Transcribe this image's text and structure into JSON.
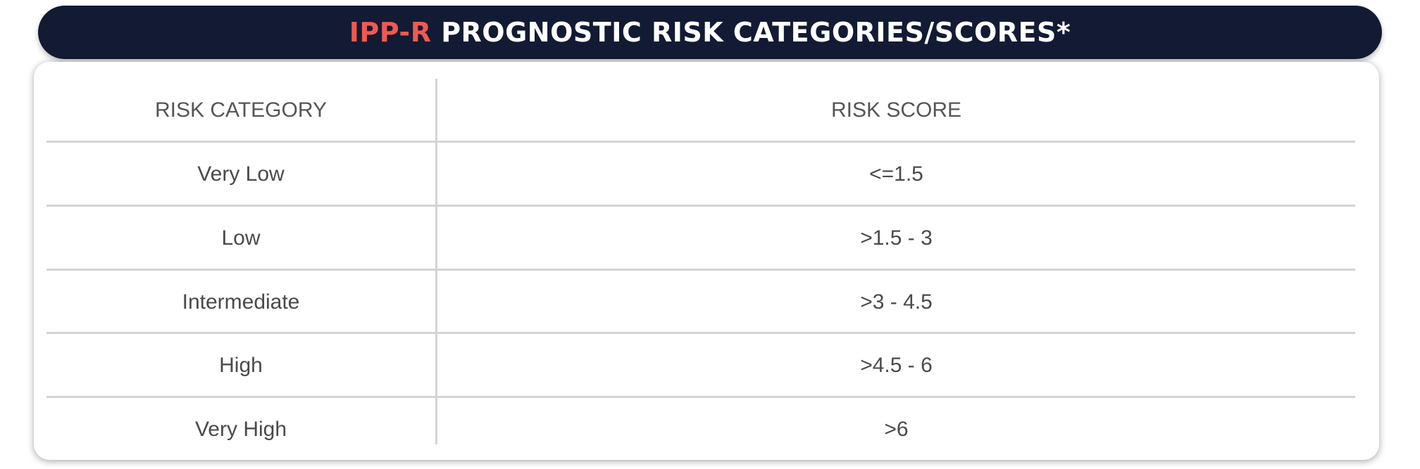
{
  "header": {
    "title_accent": "IPP-R",
    "title_rest": " PROGNOSTIC RISK CATEGORIES/SCORES*",
    "background_color": "#131a33",
    "accent_color": "#ee5a52"
  },
  "table": {
    "columns": [
      "RISK CATEGORY",
      "RISK SCORE"
    ],
    "rows": [
      {
        "category": "Very Low",
        "score": "<=1.5"
      },
      {
        "category": "Low",
        "score": ">1.5 - 3"
      },
      {
        "category": "Intermediate",
        "score": ">3 - 4.5"
      },
      {
        "category": "High",
        "score": ">4.5 - 6"
      },
      {
        "category": "Very High",
        "score": ">6"
      }
    ]
  }
}
